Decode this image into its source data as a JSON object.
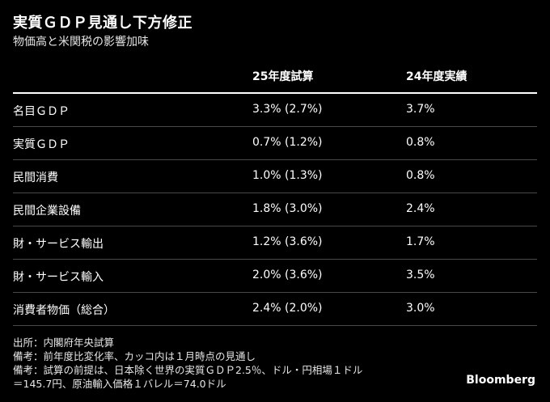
{
  "title": "実質ＧＤＰ見通し下方修正",
  "subtitle": "物価高と米関税の影響加味",
  "table": {
    "headers": [
      "",
      "25年度試算",
      "24年度実績"
    ],
    "rows": [
      [
        "名目ＧＤＰ",
        "3.3% (2.7%)",
        "3.7%"
      ],
      [
        "実質ＧＤＰ",
        "0.7% (1.2%)",
        "0.8%"
      ],
      [
        "民間消費",
        "1.0% (1.3%)",
        "0.8%"
      ],
      [
        "民間企業設備",
        "1.8% (3.0%)",
        "2.4%"
      ],
      [
        "財・サービス輸出",
        "1.2% (3.6%)",
        "1.7%"
      ],
      [
        "財・サービス輸入",
        "2.0% (3.6%)",
        "3.5%"
      ],
      [
        "消費者物価（総合）",
        "2.4% (2.0%)",
        "3.0%"
      ]
    ]
  },
  "notes": [
    "出所：内閣府年央試算",
    "備考：前年度比変化率、カッコ内は１月時点の見通し",
    "備考：試算の前提は、日本除く世界の実質ＧＤＰ2.5％、ドル・円相場１ドル",
    "＝145.7円、原油輸入価格１バレル＝74.0ドル"
  ],
  "brand": "Bloomberg"
}
